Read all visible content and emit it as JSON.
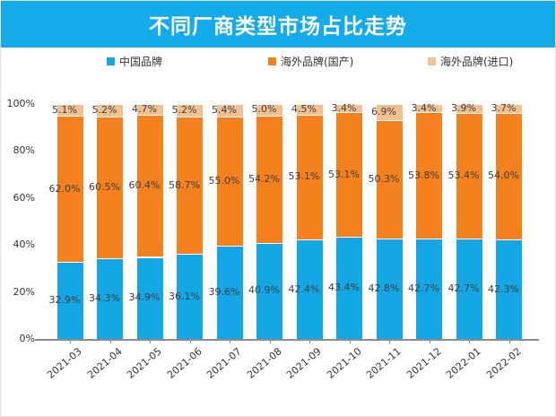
{
  "header": {
    "title": "不同厂商类型市场占比走势",
    "bg_color": "#14ABEB",
    "text_color": "#FFFFFF"
  },
  "chart_data": {
    "type": "bar",
    "stacked": true,
    "title": "不同厂商类型市场占比走势",
    "categories": [
      "2021-03",
      "2021-04",
      "2021-05",
      "2021-06",
      "2021-07",
      "2021-08",
      "2021-09",
      "2021-10",
      "2021-11",
      "2021-12",
      "2022-01",
      "2022-02"
    ],
    "series": [
      {
        "name": "中国品牌",
        "color": "#14A7E5",
        "values": [
          32.9,
          34.3,
          34.9,
          36.1,
          39.6,
          40.9,
          42.4,
          43.4,
          42.8,
          42.7,
          42.7,
          42.3
        ]
      },
      {
        "name": "海外品牌(国产)",
        "color": "#F5811E",
        "values": [
          62.0,
          60.5,
          60.4,
          58.7,
          55.0,
          54.2,
          53.1,
          53.1,
          50.3,
          53.8,
          53.4,
          54.0
        ]
      },
      {
        "name": "海外品牌(进口)",
        "color": "#F3C091",
        "values": [
          5.1,
          5.2,
          4.7,
          5.2,
          5.4,
          5.0,
          4.5,
          3.4,
          6.9,
          3.4,
          3.9,
          3.7
        ]
      }
    ],
    "value_suffix": "%",
    "y_ticks": [
      "100%",
      "80%",
      "60%",
      "40%",
      "20%",
      "0%"
    ],
    "ylim": [
      0,
      100
    ],
    "grid": false,
    "legend_position": "top",
    "axis_color": "#8C8C8C"
  }
}
